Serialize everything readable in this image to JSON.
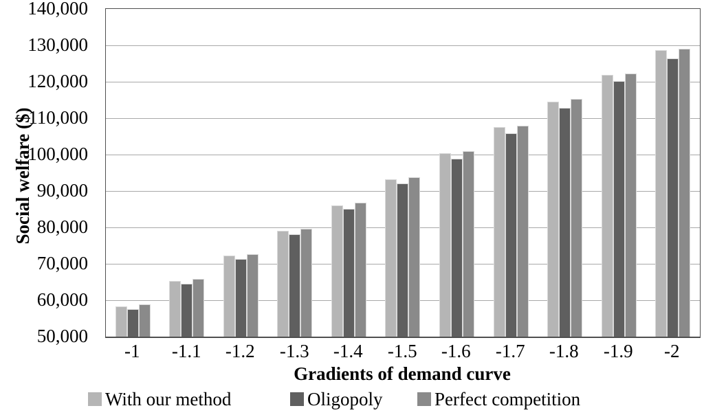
{
  "chart_data": {
    "type": "bar",
    "title": "",
    "xlabel": "Gradients of demand curve",
    "ylabel": "Social welfare ($)",
    "ylim": [
      50000,
      140000
    ],
    "ytick_step": 10000,
    "ytick_labels": [
      "50,000",
      "60,000",
      "70,000",
      "80,000",
      "90,000",
      "100,000",
      "110,000",
      "120,000",
      "130,000",
      "140,000"
    ],
    "grid": true,
    "legend_position": "bottom",
    "categories": [
      "-1",
      "-1.1",
      "-1.2",
      "-1.3",
      "-1.4",
      "-1.5",
      "-1.6",
      "-1.7",
      "-1.8",
      "-1.9",
      "-2"
    ],
    "series": [
      {
        "name": "With our method",
        "color": "#b5b5b5",
        "values": [
          58300,
          65300,
          72300,
          79100,
          86100,
          93300,
          100400,
          107500,
          114600,
          121800,
          128700
        ]
      },
      {
        "name": "Oligopoly",
        "color": "#5f5f5f",
        "values": [
          57500,
          64500,
          71300,
          78100,
          85100,
          92000,
          98800,
          105800,
          112800,
          120100,
          126500
        ]
      },
      {
        "name": "Perfect competition",
        "color": "#8a8a8a",
        "values": [
          58800,
          65900,
          72700,
          79600,
          86700,
          93800,
          101000,
          108000,
          115200,
          122300,
          129100
        ]
      }
    ],
    "colors": {
      "gridline": "#a8a8a8",
      "plot_border": "#4f4f4f",
      "text": "#000000",
      "background": "#ffffff"
    }
  }
}
